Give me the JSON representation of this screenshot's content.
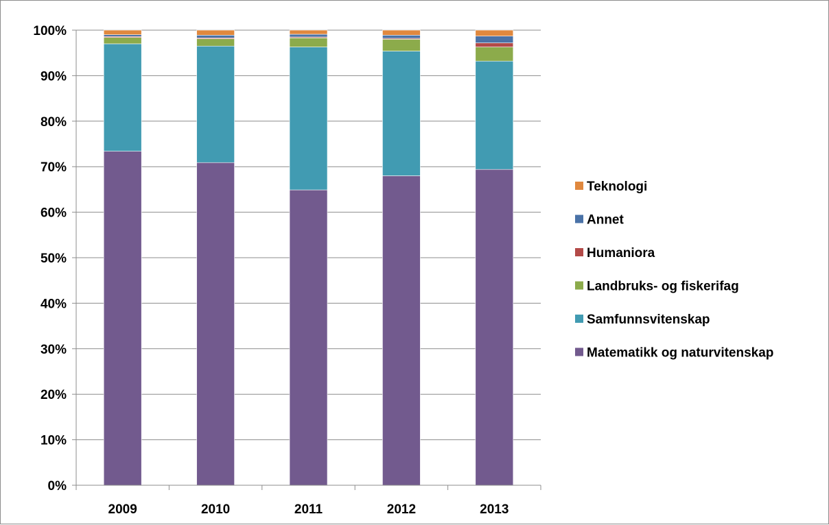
{
  "chart_data": {
    "type": "bar",
    "stacked": true,
    "percent_stacked": true,
    "title": "",
    "xlabel": "",
    "ylabel": "",
    "ylim": [
      0,
      100
    ],
    "y_ticks": [
      "0%",
      "10%",
      "20%",
      "30%",
      "40%",
      "50%",
      "60%",
      "70%",
      "80%",
      "90%",
      "100%"
    ],
    "grid": true,
    "legend_position": "right",
    "categories": [
      "2009",
      "2010",
      "2011",
      "2012",
      "2013"
    ],
    "series": [
      {
        "name": "Matematikk og naturvitenskap",
        "color": "#725a8e",
        "values": [
          73.4,
          70.9,
          64.9,
          68.0,
          69.4
        ]
      },
      {
        "name": "Samfunnsvitenskap",
        "color": "#419bb2",
        "values": [
          23.6,
          25.6,
          31.4,
          27.4,
          23.8
        ]
      },
      {
        "name": "Landbruks- og fiskerifag",
        "color": "#8cab4b",
        "values": [
          1.4,
          1.6,
          2.0,
          2.6,
          3.1
        ]
      },
      {
        "name": "Humaniora",
        "color": "#b34a48",
        "values": [
          0.2,
          0.2,
          0.2,
          0.2,
          0.9
        ]
      },
      {
        "name": "Annet",
        "color": "#4a72a7",
        "values": [
          0.4,
          0.6,
          0.6,
          0.7,
          1.5
        ]
      },
      {
        "name": "Teknologi",
        "color": "#e0883e",
        "values": [
          1.0,
          1.1,
          0.9,
          1.1,
          1.3
        ]
      }
    ],
    "legend_order": [
      "Teknologi",
      "Annet",
      "Humaniora",
      "Landbruks- og fiskerifag",
      "Samfunnsvitenskap",
      "Matematikk og naturvitenskap"
    ]
  }
}
